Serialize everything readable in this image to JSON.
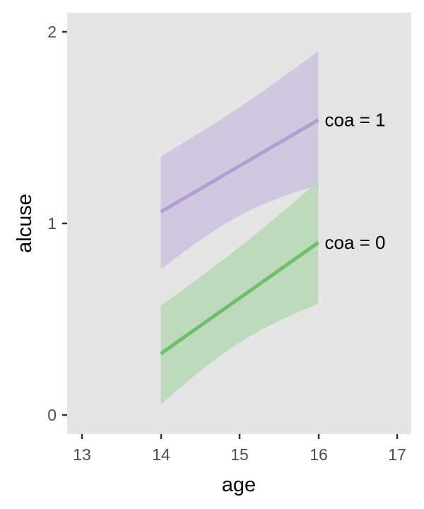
{
  "chart_data": {
    "type": "line",
    "title": "",
    "xlabel": "age",
    "ylabel": "alcuse",
    "xlim": [
      12.8,
      17.2
    ],
    "ylim": [
      -0.1,
      2.1
    ],
    "x_ticks": [
      "13",
      "14",
      "15",
      "16",
      "17"
    ],
    "y_ticks": [
      "0",
      "1",
      "2"
    ],
    "grid": false,
    "legend": "direct labels at line ends",
    "series": [
      {
        "name": "coa = 1",
        "label": "coa = 1",
        "color": "#b09fd0",
        "ribbon_color": "#cfc8df",
        "x": [
          14,
          16
        ],
        "y": [
          1.06,
          1.54
        ],
        "ci_lower": [
          0.76,
          1.2
        ],
        "ci_upper": [
          1.35,
          1.9
        ]
      },
      {
        "name": "coa = 0",
        "label": "coa = 0",
        "color": "#6dbf6a",
        "ribbon_color": "#b8d8b8",
        "x": [
          14,
          16
        ],
        "y": [
          0.32,
          0.9
        ],
        "ci_lower": [
          0.055,
          0.58
        ],
        "ci_upper": [
          0.57,
          1.22
        ]
      }
    ],
    "panel_background": "#e5e5e5"
  }
}
